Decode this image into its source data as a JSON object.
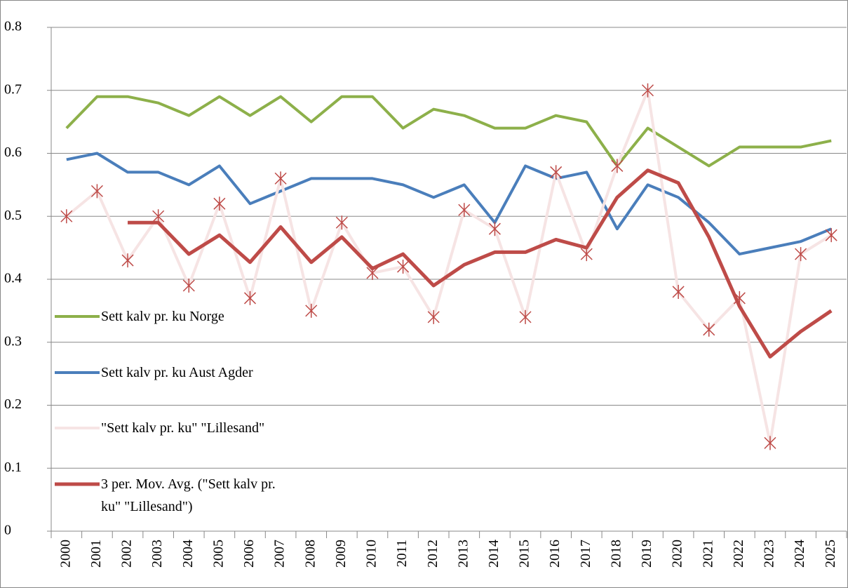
{
  "chart_data": {
    "type": "line",
    "categories": [
      "2000",
      "2001",
      "2002",
      "2003",
      "2004",
      "2005",
      "2006",
      "2007",
      "2008",
      "2009",
      "2010",
      "2011",
      "2012",
      "2013",
      "2014",
      "2015",
      "2016",
      "2017",
      "2018",
      "2019",
      "2020",
      "2021",
      "2022",
      "2023",
      "2024",
      "2025"
    ],
    "series": [
      {
        "name": "Sett kalv pr. ku Norge",
        "color": "#8db04a",
        "values": [
          0.64,
          0.69,
          0.69,
          0.68,
          0.66,
          0.69,
          0.66,
          0.69,
          0.65,
          0.69,
          0.69,
          0.64,
          0.67,
          0.66,
          0.64,
          0.64,
          0.66,
          0.65,
          0.58,
          0.64,
          0.61,
          0.58,
          0.61,
          0.61,
          0.61,
          0.62
        ]
      },
      {
        "name": "Sett kalv pr. ku Aust Agder",
        "color": "#4a7ebb",
        "values": [
          0.59,
          0.6,
          0.57,
          0.57,
          0.55,
          0.58,
          0.52,
          0.54,
          0.56,
          0.56,
          0.56,
          0.55,
          0.53,
          0.55,
          0.49,
          0.58,
          0.56,
          0.57,
          0.48,
          0.55,
          0.53,
          0.49,
          0.44,
          0.45,
          0.46,
          0.48
        ]
      },
      {
        "name": "\"Sett kalv pr. ku\" \"Lillesand\"",
        "color": "#f6e4e4",
        "marker": "star",
        "marker_color": "#be4b48",
        "values": [
          0.5,
          0.54,
          0.43,
          0.5,
          0.39,
          0.52,
          0.37,
          0.56,
          0.35,
          0.49,
          0.41,
          0.42,
          0.34,
          0.51,
          0.48,
          0.34,
          0.57,
          0.44,
          0.58,
          0.7,
          0.38,
          0.32,
          0.37,
          0.14,
          0.44,
          0.47
        ]
      },
      {
        "name": "3 per. Mov. Avg. (\"Sett kalv pr. ku\" \"Lillesand\")",
        "color": "#be4b48",
        "values": [
          null,
          null,
          0.49,
          0.49,
          0.44,
          0.47,
          0.427,
          0.483,
          0.427,
          0.467,
          0.417,
          0.44,
          0.39,
          0.423,
          0.443,
          0.443,
          0.463,
          0.45,
          0.53,
          0.573,
          0.553,
          0.467,
          0.357,
          0.277,
          0.317,
          0.35
        ]
      }
    ],
    "ylim": [
      0,
      0.8
    ],
    "yticks": [
      0,
      0.1,
      0.2,
      0.3,
      0.4,
      0.5,
      0.6,
      0.7,
      0.8
    ],
    "grid": true,
    "legend": "left"
  }
}
